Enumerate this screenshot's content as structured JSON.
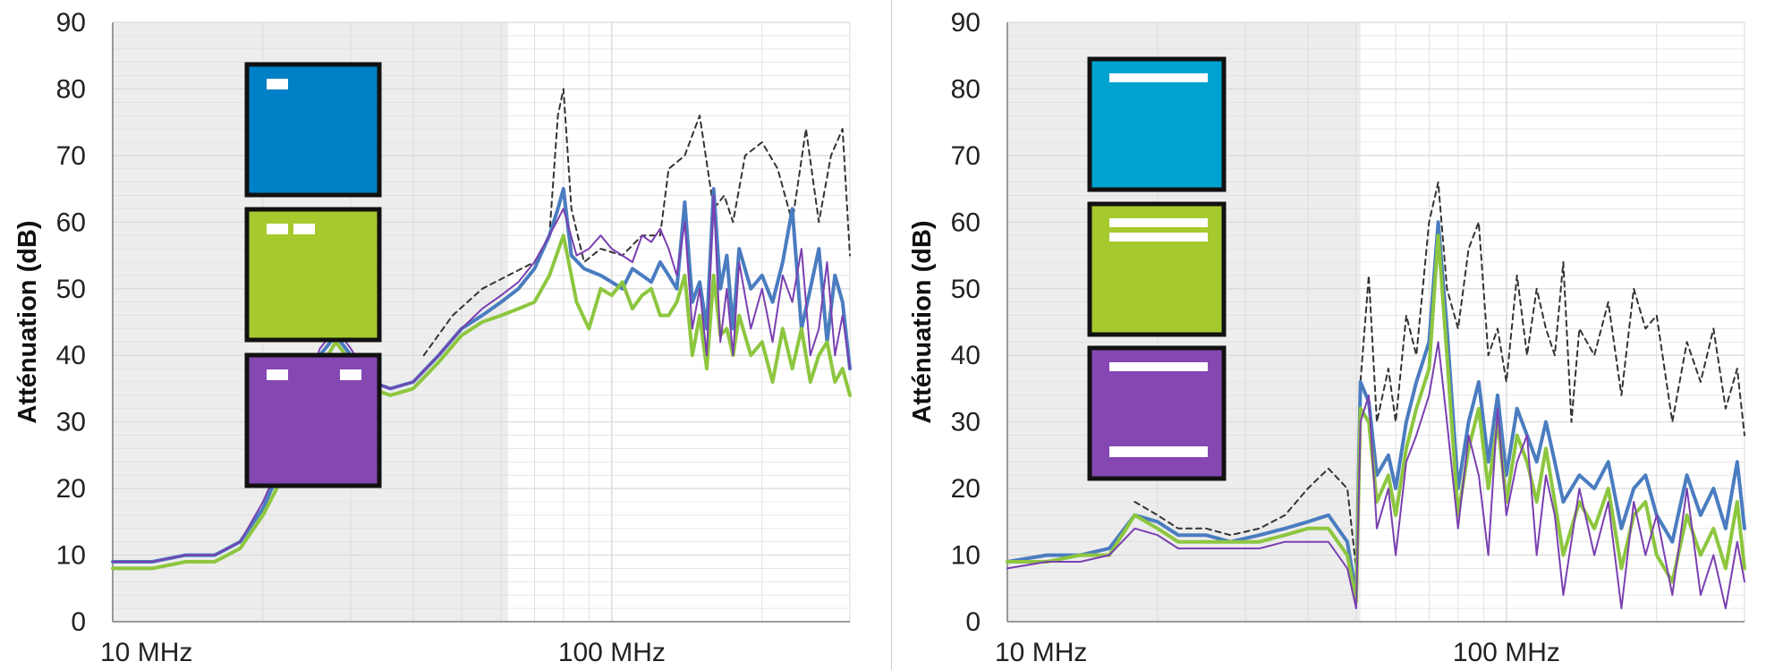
{
  "colors": {
    "blue_series": "#4a7cc0",
    "green_series": "#8dc63f",
    "purple_series": "#7a3fb0",
    "reference_series": "#333333",
    "shade": "#ededed",
    "grid": "#d9d9d9"
  },
  "chart_data": [
    {
      "type": "line",
      "xscale": "log",
      "xlim_mhz": [
        10,
        300
      ],
      "ylim": [
        0,
        90
      ],
      "ylabel": "Atténuation (dB)",
      "yticks": [
        "0",
        "10",
        "20",
        "30",
        "40",
        "50",
        "60",
        "70",
        "80",
        "90"
      ],
      "xticks": [
        {
          "value": 10,
          "label": "10 MHz"
        },
        {
          "value": 100,
          "label": "100 MHz"
        }
      ],
      "shaded_region_mhz": [
        10,
        62
      ],
      "legend_swatches": [
        {
          "color": "#0080c6",
          "marks": "one short slot top-left"
        },
        {
          "color": "#a6c92d",
          "marks": "two short slots top-left"
        },
        {
          "color": "#8547b2",
          "marks": "two short slots at top corners"
        }
      ],
      "series": [
        {
          "style": "dashed-black",
          "x": [
            42,
            48,
            55,
            62,
            70,
            75,
            78,
            80,
            83,
            88,
            95,
            105,
            115,
            125,
            130,
            140,
            150,
            160,
            168,
            175,
            185,
            200,
            215,
            230,
            245,
            260,
            275,
            290,
            300
          ],
          "y": [
            40,
            46,
            50,
            52,
            54,
            58,
            76,
            80,
            62,
            54,
            56,
            55,
            58,
            58,
            68,
            70,
            76,
            62,
            64,
            60,
            70,
            72,
            68,
            60,
            74,
            60,
            70,
            74,
            55
          ]
        },
        {
          "style": "blue",
          "x": [
            10,
            12,
            14,
            16,
            18,
            20,
            22,
            24,
            26,
            28,
            30,
            33,
            36,
            40,
            45,
            50,
            55,
            60,
            65,
            70,
            75,
            78,
            80,
            83,
            88,
            95,
            100,
            105,
            110,
            115,
            120,
            125,
            130,
            135,
            140,
            145,
            150,
            155,
            160,
            165,
            170,
            175,
            180,
            190,
            200,
            210,
            220,
            230,
            240,
            250,
            260,
            270,
            280,
            290,
            300
          ],
          "y": [
            9,
            9,
            10,
            10,
            12,
            17,
            24,
            32,
            40,
            43,
            40,
            36,
            35,
            36,
            40,
            44,
            46,
            48,
            50,
            53,
            58,
            62,
            65,
            55,
            53,
            52,
            51,
            50,
            53,
            52,
            51,
            54,
            52,
            50,
            63,
            48,
            51,
            44,
            65,
            50,
            55,
            44,
            56,
            50,
            52,
            48,
            54,
            62,
            44,
            50,
            56,
            42,
            52,
            48,
            38
          ]
        },
        {
          "style": "green",
          "x": [
            10,
            12,
            14,
            16,
            18,
            20,
            22,
            24,
            26,
            28,
            30,
            33,
            36,
            40,
            45,
            50,
            55,
            60,
            65,
            70,
            75,
            80,
            85,
            90,
            95,
            100,
            105,
            110,
            115,
            120,
            125,
            130,
            135,
            140,
            145,
            150,
            155,
            160,
            165,
            170,
            175,
            180,
            190,
            200,
            210,
            220,
            230,
            240,
            250,
            260,
            270,
            280,
            290,
            300
          ],
          "y": [
            8,
            8,
            9,
            9,
            11,
            16,
            22,
            30,
            38,
            42,
            39,
            35,
            34,
            35,
            39,
            43,
            45,
            46,
            47,
            48,
            52,
            58,
            48,
            44,
            50,
            49,
            51,
            47,
            49,
            50,
            46,
            46,
            48,
            52,
            40,
            46,
            38,
            52,
            43,
            44,
            40,
            46,
            40,
            42,
            36,
            44,
            38,
            44,
            36,
            40,
            42,
            36,
            38,
            34
          ]
        },
        {
          "style": "purple",
          "x": [
            10,
            12,
            14,
            16,
            18,
            20,
            22,
            24,
            26,
            28,
            30,
            33,
            36,
            40,
            45,
            50,
            55,
            60,
            65,
            70,
            75,
            80,
            85,
            90,
            95,
            100,
            105,
            110,
            115,
            120,
            125,
            130,
            135,
            140,
            145,
            150,
            155,
            160,
            165,
            170,
            175,
            180,
            190,
            200,
            210,
            220,
            230,
            240,
            250,
            260,
            270,
            280,
            290,
            300
          ],
          "y": [
            9,
            9,
            10,
            10,
            12,
            18,
            25,
            33,
            41,
            44,
            41,
            36,
            35,
            36,
            40,
            44,
            47,
            49,
            51,
            54,
            58,
            62,
            55,
            56,
            58,
            56,
            55,
            54,
            58,
            57,
            59,
            56,
            52,
            60,
            44,
            50,
            40,
            64,
            42,
            50,
            40,
            54,
            44,
            50,
            42,
            52,
            48,
            56,
            40,
            44,
            54,
            40,
            46,
            38
          ]
        }
      ]
    },
    {
      "type": "line",
      "xscale": "log",
      "xlim_mhz": [
        10,
        300
      ],
      "ylim": [
        0,
        90
      ],
      "ylabel": "Atténuation (dB)",
      "yticks": [
        "0",
        "10",
        "20",
        "30",
        "40",
        "50",
        "60",
        "70",
        "80",
        "90"
      ],
      "xticks": [
        {
          "value": 10,
          "label": "10 MHz"
        },
        {
          "value": 100,
          "label": "100 MHz"
        }
      ],
      "shaded_region_mhz": [
        10,
        51
      ],
      "legend_swatches": [
        {
          "color": "#00a3cf",
          "marks": "one long bar at top"
        },
        {
          "color": "#a6c92d",
          "marks": "two long bars at top"
        },
        {
          "color": "#8547b2",
          "marks": "long bars at top and bottom"
        }
      ],
      "series": [
        {
          "style": "dashed-black",
          "x": [
            18,
            20,
            22,
            25,
            28,
            32,
            36,
            40,
            44,
            48,
            50,
            51,
            53,
            55,
            58,
            60,
            63,
            66,
            70,
            73,
            76,
            80,
            84,
            88,
            92,
            96,
            100,
            105,
            110,
            115,
            120,
            125,
            130,
            135,
            140,
            150,
            160,
            170,
            180,
            190,
            200,
            215,
            230,
            245,
            260,
            275,
            290,
            300
          ],
          "y": [
            18,
            16,
            14,
            14,
            13,
            14,
            16,
            20,
            23,
            20,
            8,
            36,
            52,
            30,
            38,
            30,
            46,
            40,
            60,
            66,
            50,
            44,
            56,
            60,
            40,
            44,
            36,
            52,
            40,
            50,
            44,
            40,
            54,
            30,
            44,
            40,
            48,
            34,
            50,
            44,
            46,
            30,
            42,
            36,
            44,
            32,
            38,
            28
          ]
        },
        {
          "style": "blue",
          "x": [
            10,
            12,
            14,
            16,
            18,
            20,
            22,
            25,
            28,
            32,
            36,
            40,
            44,
            48,
            50,
            51,
            53,
            55,
            58,
            60,
            63,
            66,
            70,
            73,
            76,
            80,
            84,
            88,
            92,
            96,
            100,
            105,
            110,
            115,
            120,
            125,
            130,
            140,
            150,
            160,
            170,
            180,
            190,
            200,
            215,
            230,
            245,
            260,
            275,
            290,
            300
          ],
          "y": [
            9,
            10,
            10,
            11,
            16,
            15,
            13,
            13,
            12,
            13,
            14,
            15,
            16,
            12,
            4,
            36,
            33,
            22,
            25,
            20,
            30,
            36,
            42,
            60,
            44,
            20,
            30,
            36,
            24,
            34,
            22,
            32,
            28,
            24,
            30,
            24,
            18,
            22,
            20,
            24,
            14,
            20,
            22,
            16,
            12,
            22,
            16,
            20,
            14,
            24,
            14
          ]
        },
        {
          "style": "green",
          "x": [
            10,
            12,
            14,
            16,
            18,
            20,
            22,
            25,
            28,
            32,
            36,
            40,
            44,
            48,
            50,
            51,
            53,
            55,
            58,
            60,
            63,
            66,
            70,
            73,
            76,
            80,
            84,
            88,
            92,
            96,
            100,
            105,
            110,
            115,
            120,
            125,
            130,
            140,
            150,
            160,
            170,
            180,
            190,
            200,
            215,
            230,
            245,
            260,
            275,
            290,
            300
          ],
          "y": [
            9,
            9,
            10,
            10,
            16,
            14,
            12,
            12,
            12,
            12,
            13,
            14,
            14,
            10,
            3,
            32,
            30,
            18,
            22,
            16,
            26,
            32,
            38,
            58,
            40,
            16,
            26,
            32,
            20,
            30,
            18,
            28,
            24,
            18,
            26,
            18,
            10,
            18,
            14,
            20,
            8,
            16,
            18,
            10,
            6,
            16,
            10,
            14,
            8,
            18,
            8
          ]
        },
        {
          "style": "purple",
          "x": [
            10,
            12,
            14,
            16,
            18,
            20,
            22,
            25,
            28,
            32,
            36,
            40,
            44,
            48,
            50,
            51,
            53,
            55,
            58,
            60,
            63,
            66,
            70,
            73,
            76,
            80,
            84,
            88,
            92,
            96,
            100,
            105,
            110,
            115,
            120,
            125,
            130,
            140,
            150,
            160,
            170,
            180,
            190,
            200,
            215,
            230,
            245,
            260,
            275,
            290,
            300
          ],
          "y": [
            8,
            9,
            9,
            10,
            14,
            13,
            11,
            11,
            11,
            11,
            12,
            12,
            12,
            8,
            2,
            30,
            34,
            14,
            20,
            10,
            24,
            28,
            34,
            42,
            30,
            14,
            28,
            22,
            10,
            32,
            16,
            24,
            28,
            10,
            22,
            16,
            4,
            20,
            10,
            18,
            2,
            18,
            10,
            16,
            4,
            20,
            4,
            10,
            2,
            12,
            6
          ]
        }
      ]
    }
  ]
}
